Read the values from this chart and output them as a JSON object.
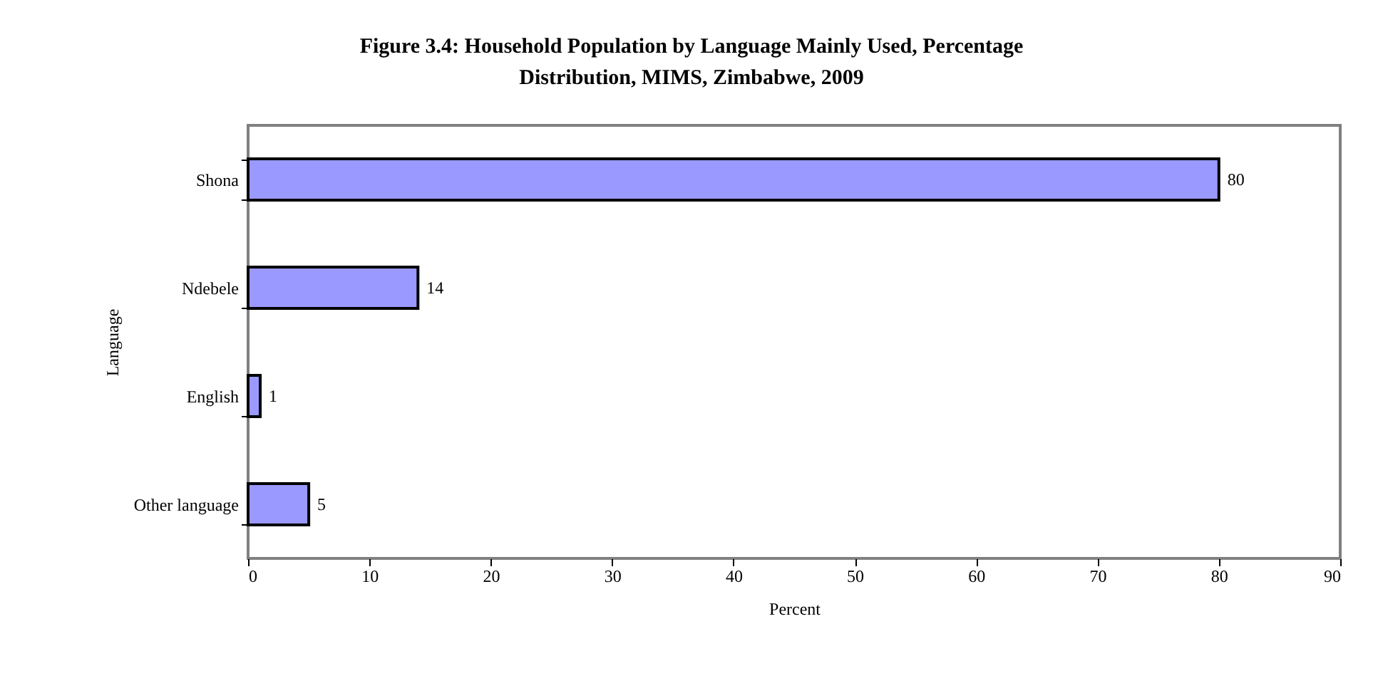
{
  "chart_data": {
    "type": "bar",
    "orientation": "horizontal",
    "title": "Figure 3.4: Household Population by Language Mainly Used, Percentage\nDistribution,  MIMS, Zimbabwe, 2009",
    "xlabel": "Percent",
    "ylabel": "Language",
    "categories": [
      "Shona",
      "Ndebele",
      "English",
      "Other language"
    ],
    "values": [
      80,
      14,
      1,
      5
    ],
    "color": "#9999ff",
    "xlim": [
      0,
      90
    ],
    "xticks": [
      0,
      10,
      20,
      30,
      40,
      50,
      60,
      70,
      80,
      90
    ],
    "data_labels": true,
    "grid": false
  }
}
